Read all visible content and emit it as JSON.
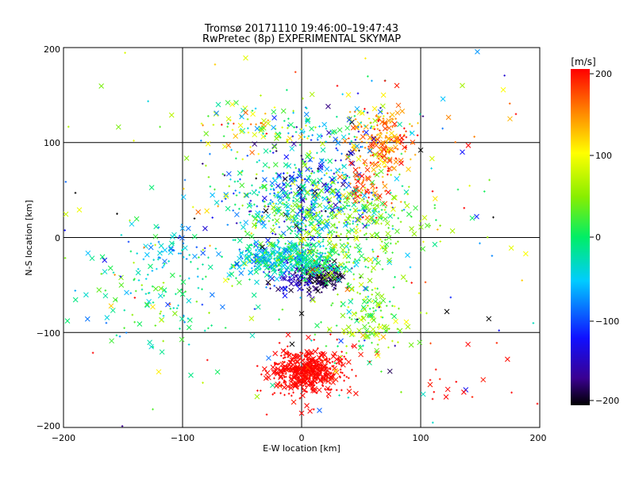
{
  "chart_data": {
    "type": "scatter",
    "title": "Tromsø 20171110 19:46:00–19:47:43",
    "subtitle": "RwPretec (8p) EXPERIMENTAL SKYMAP",
    "xlabel": "E-W location [km]",
    "ylabel": "N-S location [km]",
    "xlim": [
      -200,
      200
    ],
    "ylim": [
      -200,
      200
    ],
    "xticks": [
      "−200",
      "−100",
      "0",
      "100",
      "200"
    ],
    "yticks": [
      "200",
      "100",
      "0",
      "−100",
      "−200"
    ],
    "grid_lines_x": [
      -100,
      0,
      100
    ],
    "grid_lines_y": [
      -100,
      0,
      100
    ],
    "markers": [
      "plus",
      "x"
    ],
    "colorbar": {
      "label": "[m/s]",
      "range": [
        -200,
        200
      ],
      "ticks": [
        "200",
        "100",
        "0",
        "−100",
        "−200"
      ],
      "colormap": "rainbow"
    },
    "clusters": [
      {
        "cx": 5,
        "cy": -140,
        "sx": 14,
        "sy": 10,
        "n": 520,
        "v": 200,
        "sv": 8
      },
      {
        "cx": 5,
        "cy": -148,
        "sx": 25,
        "sy": 20,
        "n": 60,
        "v": 200,
        "sv": 5
      },
      {
        "cx": 15,
        "cy": -42,
        "sx": 10,
        "sy": 7,
        "n": 150,
        "v": -185,
        "sv": 15
      },
      {
        "cx": -5,
        "cy": -45,
        "sx": 10,
        "sy": 6,
        "n": 70,
        "v": -140,
        "sv": 20
      },
      {
        "cx": -20,
        "cy": -22,
        "sx": 20,
        "sy": 9,
        "n": 320,
        "v": -40,
        "sv": 35
      },
      {
        "cx": 10,
        "cy": -25,
        "sx": 18,
        "sy": 8,
        "n": 160,
        "v": -5,
        "sv": 25
      },
      {
        "cx": 0,
        "cy": 40,
        "sx": 32,
        "sy": 22,
        "n": 450,
        "v": -35,
        "sv": 55
      },
      {
        "cx": 20,
        "cy": 55,
        "sx": 25,
        "sy": 25,
        "n": 90,
        "v": -130,
        "sv": 35
      },
      {
        "cx": 65,
        "cy": 100,
        "sx": 12,
        "sy": 18,
        "n": 210,
        "v": 155,
        "sv": 35
      },
      {
        "cx": 55,
        "cy": 50,
        "sx": 10,
        "sy": 12,
        "n": 60,
        "v": 170,
        "sv": 20
      },
      {
        "cx": 40,
        "cy": 10,
        "sx": 35,
        "sy": 25,
        "n": 270,
        "v": 45,
        "sv": 30
      },
      {
        "cx": 55,
        "cy": -80,
        "sx": 20,
        "sy": 22,
        "n": 150,
        "v": 40,
        "sv": 35
      },
      {
        "cx": -120,
        "cy": -55,
        "sx": 30,
        "sy": 32,
        "n": 130,
        "v": -10,
        "sv": 35
      },
      {
        "cx": -110,
        "cy": -10,
        "sx": 15,
        "sy": 10,
        "n": 40,
        "v": -60,
        "sv": 30
      },
      {
        "cx": -35,
        "cy": 115,
        "sx": 25,
        "sy": 15,
        "n": 80,
        "v": 80,
        "sv": 60
      },
      {
        "cx": 25,
        "cy": 115,
        "sx": 35,
        "sy": 15,
        "n": 90,
        "v": -50,
        "sv": 80
      },
      {
        "cx": 0,
        "cy": 0,
        "sx": 110,
        "sy": 100,
        "n": 260,
        "v": 20,
        "sv": 100
      },
      {
        "cx": 150,
        "cy": -150,
        "sx": 25,
        "sy": 20,
        "n": 14,
        "v": 200,
        "sv": 10
      }
    ],
    "points": [
      {
        "x": -160,
        "y": -72,
        "v": 120,
        "m": "x"
      },
      {
        "x": -125,
        "y": -73,
        "v": 110,
        "m": "x"
      },
      {
        "x": -93,
        "y": -145,
        "v": -10,
        "m": "x"
      },
      {
        "x": -147,
        "y": -58,
        "v": -60,
        "m": "x"
      },
      {
        "x": -190,
        "y": 47,
        "v": -200,
        "m": "plus"
      },
      {
        "x": -155,
        "y": 25,
        "v": -200,
        "m": "plus"
      },
      {
        "x": -62,
        "y": 142,
        "v": 20,
        "m": "x"
      },
      {
        "x": -55,
        "y": 142,
        "v": 20,
        "m": "x"
      },
      {
        "x": -70,
        "y": 140,
        "v": -20,
        "m": "x"
      },
      {
        "x": 135,
        "y": 160,
        "v": 60,
        "m": "x"
      },
      {
        "x": 80,
        "y": 160,
        "v": 190,
        "m": "x"
      },
      {
        "x": 70,
        "y": 165,
        "v": 200,
        "m": "plus"
      },
      {
        "x": 175,
        "y": 125,
        "v": 130,
        "m": "x"
      },
      {
        "x": 180,
        "y": 130,
        "v": 200,
        "m": "plus"
      },
      {
        "x": 140,
        "y": 97,
        "v": 200,
        "m": "x"
      },
      {
        "x": 135,
        "y": 90,
        "v": -120,
        "m": "x"
      },
      {
        "x": 147,
        "y": 22,
        "v": -110,
        "m": "x"
      },
      {
        "x": 122,
        "y": -78,
        "v": -200,
        "m": "x"
      },
      {
        "x": 100,
        "y": 92,
        "v": -200,
        "m": "x"
      },
      {
        "x": 108,
        "y": -150,
        "v": 200,
        "m": "plus"
      },
      {
        "x": 110,
        "y": -170,
        "v": 200,
        "m": "plus"
      },
      {
        "x": 198,
        "y": -175,
        "v": 200,
        "m": "plus"
      },
      {
        "x": 0,
        "y": -185,
        "v": 200,
        "m": "x"
      },
      {
        "x": 0,
        "y": -80,
        "v": -200,
        "m": "x"
      },
      {
        "x": -30,
        "y": 28,
        "v": -200,
        "m": "x"
      },
      {
        "x": -33,
        "y": -10,
        "v": -200,
        "m": "x"
      },
      {
        "x": -90,
        "y": 20,
        "v": -200,
        "m": "plus"
      },
      {
        "x": 40,
        "y": -100,
        "v": 60,
        "m": "x"
      }
    ]
  }
}
